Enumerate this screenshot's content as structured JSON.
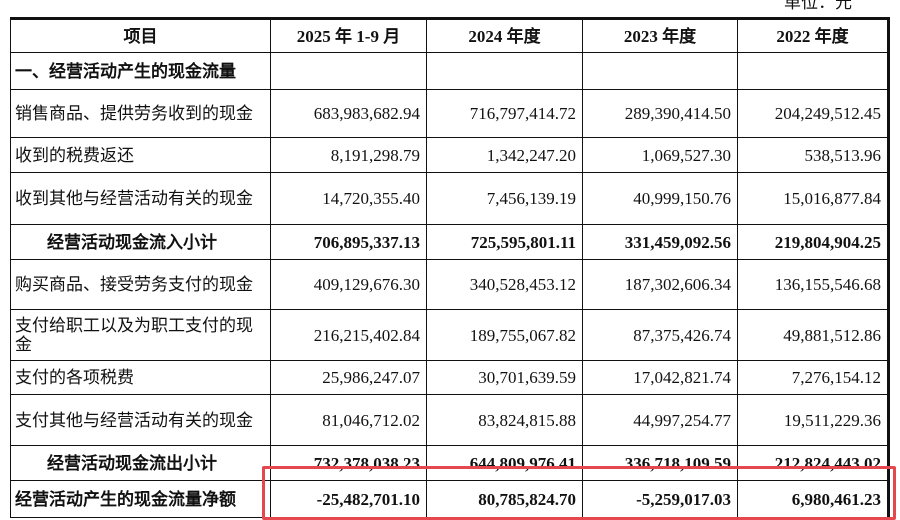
{
  "unit_label": "单位：元",
  "columns": [
    "项目",
    "2025 年 1-9 月",
    "2024 年度",
    "2023 年度",
    "2022 年度"
  ],
  "rows": [
    {
      "label": "一、经营活动产生的现金流量",
      "values": [
        "",
        "",
        "",
        ""
      ],
      "bold": true,
      "section": true
    },
    {
      "label": "销售商品、提供劳务收到的现金",
      "values": [
        "683,983,682.94",
        "716,797,414.72",
        "289,390,414.50",
        "204,249,512.45"
      ]
    },
    {
      "label": "收到的税费返还",
      "values": [
        "8,191,298.79",
        "1,342,247.20",
        "1,069,527.30",
        "538,513.96"
      ]
    },
    {
      "label": "收到其他与经营活动有关的现金",
      "values": [
        "14,720,355.40",
        "7,456,139.19",
        "40,999,150.76",
        "15,016,877.84"
      ]
    },
    {
      "label": "经营活动现金流入小计",
      "values": [
        "706,895,337.13",
        "725,595,801.11",
        "331,459,092.56",
        "219,804,904.25"
      ],
      "bold": true,
      "indent": true
    },
    {
      "label": "购买商品、接受劳务支付的现金",
      "values": [
        "409,129,676.30",
        "340,528,453.12",
        "187,302,606.34",
        "136,155,546.68"
      ]
    },
    {
      "label": "支付给职工以及为职工支付的现金",
      "values": [
        "216,215,402.84",
        "189,755,067.82",
        "87,375,426.74",
        "49,881,512.86"
      ]
    },
    {
      "label": "支付的各项税费",
      "values": [
        "25,986,247.07",
        "30,701,639.59",
        "17,042,821.74",
        "7,276,154.12"
      ]
    },
    {
      "label": "支付其他与经营活动有关的现金",
      "values": [
        "81,046,712.02",
        "83,824,815.88",
        "44,997,254.77",
        "19,511,229.36"
      ]
    },
    {
      "label": "经营活动现金流出小计",
      "values": [
        "732,378,038.23",
        "644,809,976.41",
        "336,718,109.59",
        "212,824,443.02"
      ],
      "bold": true,
      "indent": true
    },
    {
      "label": "经营活动产生的现金流量净额",
      "values": [
        "-25,482,701.10",
        "80,785,824.70",
        "-5,259,017.03",
        "6,980,461.23"
      ],
      "bold": true,
      "highlighted": true
    }
  ],
  "highlight_color": "#e5474f"
}
